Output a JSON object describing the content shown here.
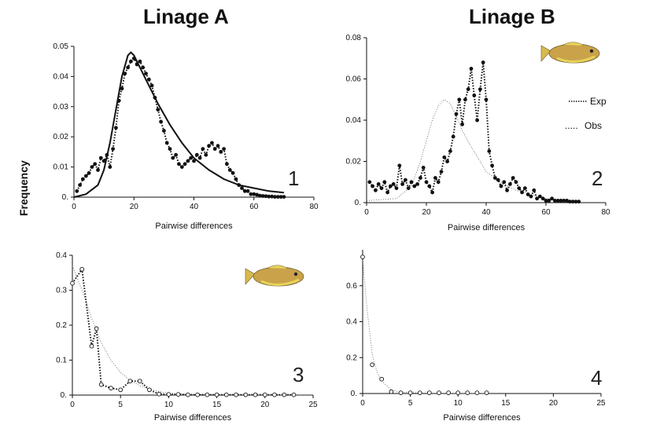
{
  "header": {
    "left_title": "Linage A",
    "right_title": "Linage B",
    "shared_ylabel": "Frequency"
  },
  "legend": {
    "exp_label": "Exp",
    "obs_label": "Obs"
  },
  "icons": {
    "fish": "fish-illustration"
  },
  "colors": {
    "axis": "#111111",
    "fish_body": "#c9a24a",
    "fish_fin": "#e8d35a"
  },
  "chart_data": [
    {
      "id": "p1",
      "type": "line",
      "number_label": "1",
      "xlabel": "Pairwise differences",
      "ylabel": "",
      "xlim": [
        0,
        80
      ],
      "ylim": [
        0,
        0.05
      ],
      "xticks": [
        0,
        20,
        40,
        60,
        80
      ],
      "xtick_labels": [
        "0",
        "20",
        "40",
        "60",
        "80"
      ],
      "yticks": [
        0,
        0.01,
        0.02,
        0.03,
        0.04,
        0.05
      ],
      "ytick_labels": [
        "0.",
        "0.01",
        "0.02",
        "0.03",
        "0.04",
        "0.05"
      ],
      "series": [
        {
          "role": "expected",
          "style": "solid",
          "marker": "none",
          "x": [
            0,
            4,
            8,
            10,
            12,
            14,
            16,
            18,
            19,
            20,
            22,
            25,
            28,
            32,
            36,
            40,
            45,
            50,
            55,
            60,
            65,
            70
          ],
          "y": [
            0,
            0.001,
            0.004,
            0.009,
            0.018,
            0.029,
            0.04,
            0.047,
            0.048,
            0.047,
            0.043,
            0.037,
            0.031,
            0.024,
            0.018,
            0.013,
            0.009,
            0.006,
            0.004,
            0.003,
            0.002,
            0.0015
          ]
        },
        {
          "role": "observed",
          "style": "dotted",
          "marker": "filled",
          "x": [
            1,
            2,
            3,
            4,
            5,
            6,
            7,
            8,
            9,
            10,
            11,
            12,
            13,
            14,
            15,
            16,
            17,
            18,
            19,
            20,
            21,
            22,
            23,
            24,
            25,
            26,
            27,
            28,
            29,
            30,
            31,
            32,
            33,
            34,
            35,
            36,
            37,
            38,
            39,
            40,
            41,
            42,
            43,
            44,
            45,
            46,
            47,
            48,
            49,
            50,
            51,
            52,
            53,
            54,
            55,
            56,
            57,
            58,
            59,
            60,
            61,
            62,
            63,
            64,
            65,
            66,
            67,
            68,
            69,
            70
          ],
          "y": [
            0.002,
            0.004,
            0.006,
            0.007,
            0.008,
            0.01,
            0.011,
            0.009,
            0.013,
            0.012,
            0.014,
            0.01,
            0.016,
            0.023,
            0.032,
            0.036,
            0.041,
            0.043,
            0.045,
            0.046,
            0.044,
            0.045,
            0.043,
            0.041,
            0.039,
            0.037,
            0.033,
            0.029,
            0.025,
            0.022,
            0.018,
            0.016,
            0.013,
            0.014,
            0.011,
            0.01,
            0.011,
            0.012,
            0.013,
            0.012,
            0.014,
            0.013,
            0.016,
            0.014,
            0.017,
            0.018,
            0.016,
            0.017,
            0.015,
            0.016,
            0.011,
            0.009,
            0.008,
            0.006,
            0.004,
            0.003,
            0.002,
            0.002,
            0.001,
            0.001,
            0.0008,
            0.0005,
            0.0004,
            0.0003,
            0.0002,
            0.0002,
            0.0001,
            0.0001,
            0.0001,
            0.0001
          ]
        }
      ]
    },
    {
      "id": "p2",
      "type": "line",
      "number_label": "2",
      "xlabel": "Pairwise differences",
      "ylabel": "",
      "xlim": [
        0,
        80
      ],
      "ylim": [
        0,
        0.08
      ],
      "xticks": [
        0,
        20,
        40,
        60,
        80
      ],
      "xtick_labels": [
        "0",
        "20",
        "40",
        "60",
        "80"
      ],
      "yticks": [
        0,
        0.02,
        0.04,
        0.06,
        0.08
      ],
      "ytick_labels": [
        "0.",
        "0.02",
        "0.04",
        "0.06",
        "0.08"
      ],
      "series": [
        {
          "role": "expected",
          "style": "thin-dotted",
          "marker": "none",
          "x": [
            0,
            10,
            15,
            18,
            20,
            22,
            24,
            26,
            28,
            30,
            32,
            35,
            38,
            40,
            45,
            50,
            55,
            60,
            65,
            70
          ],
          "y": [
            0.001,
            0.002,
            0.008,
            0.02,
            0.03,
            0.04,
            0.047,
            0.05,
            0.048,
            0.042,
            0.035,
            0.027,
            0.02,
            0.015,
            0.01,
            0.006,
            0.004,
            0.002,
            0.001,
            0.0005
          ]
        },
        {
          "role": "observed",
          "style": "dotted",
          "marker": "filled",
          "x": [
            1,
            2,
            3,
            4,
            5,
            6,
            7,
            8,
            9,
            10,
            11,
            12,
            13,
            14,
            15,
            16,
            17,
            18,
            19,
            20,
            21,
            22,
            23,
            24,
            25,
            26,
            27,
            28,
            29,
            30,
            31,
            32,
            33,
            34,
            35,
            36,
            37,
            38,
            39,
            40,
            41,
            42,
            43,
            44,
            45,
            46,
            47,
            48,
            49,
            50,
            51,
            52,
            53,
            54,
            55,
            56,
            57,
            58,
            59,
            60,
            61,
            62,
            63,
            64,
            65,
            66,
            67,
            68,
            69,
            70,
            71
          ],
          "y": [
            0.01,
            0.008,
            0.006,
            0.009,
            0.007,
            0.01,
            0.005,
            0.008,
            0.009,
            0.007,
            0.018,
            0.009,
            0.011,
            0.007,
            0.01,
            0.008,
            0.009,
            0.012,
            0.017,
            0.01,
            0.008,
            0.005,
            0.012,
            0.01,
            0.015,
            0.022,
            0.02,
            0.025,
            0.032,
            0.043,
            0.05,
            0.038,
            0.05,
            0.055,
            0.065,
            0.052,
            0.04,
            0.055,
            0.068,
            0.05,
            0.025,
            0.018,
            0.012,
            0.011,
            0.008,
            0.01,
            0.006,
            0.009,
            0.012,
            0.01,
            0.007,
            0.005,
            0.007,
            0.004,
            0.003,
            0.006,
            0.002,
            0.003,
            0.002,
            0.001,
            0.001,
            0.002,
            0.001,
            0.001,
            0.001,
            0.001,
            0.001,
            0.0005,
            0.0005,
            0.0005,
            0.0005
          ]
        }
      ]
    },
    {
      "id": "p3",
      "type": "line",
      "number_label": "3",
      "xlabel": "Pairwise differences",
      "ylabel": "",
      "xlim": [
        0,
        25
      ],
      "ylim": [
        0,
        0.4
      ],
      "xticks": [
        0,
        5,
        10,
        15,
        20,
        25
      ],
      "xtick_labels": [
        "0",
        "5",
        "10",
        "15",
        "20",
        "25"
      ],
      "yticks": [
        0,
        0.1,
        0.2,
        0.3,
        0.4
      ],
      "ytick_labels": [
        "0.",
        "0.1",
        "0.2",
        "0.3",
        "0.4"
      ],
      "series": [
        {
          "role": "expected",
          "style": "thin-dotted",
          "marker": "none",
          "x": [
            0,
            1,
            2,
            3,
            4,
            5,
            6,
            7,
            8,
            9,
            10,
            12,
            15,
            20,
            25
          ],
          "y": [
            0.37,
            0.3,
            0.22,
            0.15,
            0.1,
            0.065,
            0.042,
            0.027,
            0.017,
            0.01,
            0.006,
            0.003,
            0.001,
            0.0003,
            0.0001
          ]
        },
        {
          "role": "observed",
          "style": "dotted",
          "marker": "open",
          "x": [
            0,
            1,
            2,
            2.5,
            3,
            4,
            5,
            6,
            7,
            8,
            9,
            10,
            11,
            12,
            13,
            14,
            15,
            16,
            17,
            18,
            19,
            20,
            21,
            22,
            23
          ],
          "y": [
            0.32,
            0.36,
            0.14,
            0.19,
            0.03,
            0.02,
            0.015,
            0.04,
            0.04,
            0.015,
            0.003,
            0.002,
            0.002,
            0.001,
            0.001,
            0.001,
            0.001,
            0.001,
            0.001,
            0.001,
            0.001,
            0.001,
            0.001,
            0.001,
            0.001
          ]
        }
      ]
    },
    {
      "id": "p4",
      "type": "line",
      "number_label": "4",
      "xlabel": "Pairwise differences",
      "ylabel": "",
      "xlim": [
        0,
        25
      ],
      "ylim": [
        0,
        0.8
      ],
      "xticks": [
        0,
        5,
        10,
        15,
        20,
        25
      ],
      "xtick_labels": [
        "0",
        "5",
        "10",
        "15",
        "20",
        "25"
      ],
      "yticks": [
        0,
        0.2,
        0.4,
        0.6
      ],
      "ytick_labels": [
        "0.",
        "0.2",
        "0.4",
        "0.6"
      ],
      "series": [
        {
          "role": "expected",
          "style": "thin-dotted",
          "marker": "none",
          "x": [
            0,
            0.5,
            1,
            1.5,
            2,
            3,
            4,
            6,
            8,
            10,
            13
          ],
          "y": [
            0.74,
            0.45,
            0.22,
            0.12,
            0.07,
            0.02,
            0.008,
            0.002,
            0.001,
            0.0005,
            0.0002
          ]
        },
        {
          "role": "observed",
          "style": "none",
          "marker": "open",
          "x": [
            0,
            1,
            2,
            3,
            4,
            5,
            6,
            7,
            8,
            9,
            10,
            11,
            12,
            13
          ],
          "y": [
            0.76,
            0.16,
            0.08,
            0.01,
            0.004,
            0.004,
            0.004,
            0.004,
            0.004,
            0.004,
            0.004,
            0.004,
            0.004,
            0.004
          ]
        }
      ]
    }
  ]
}
